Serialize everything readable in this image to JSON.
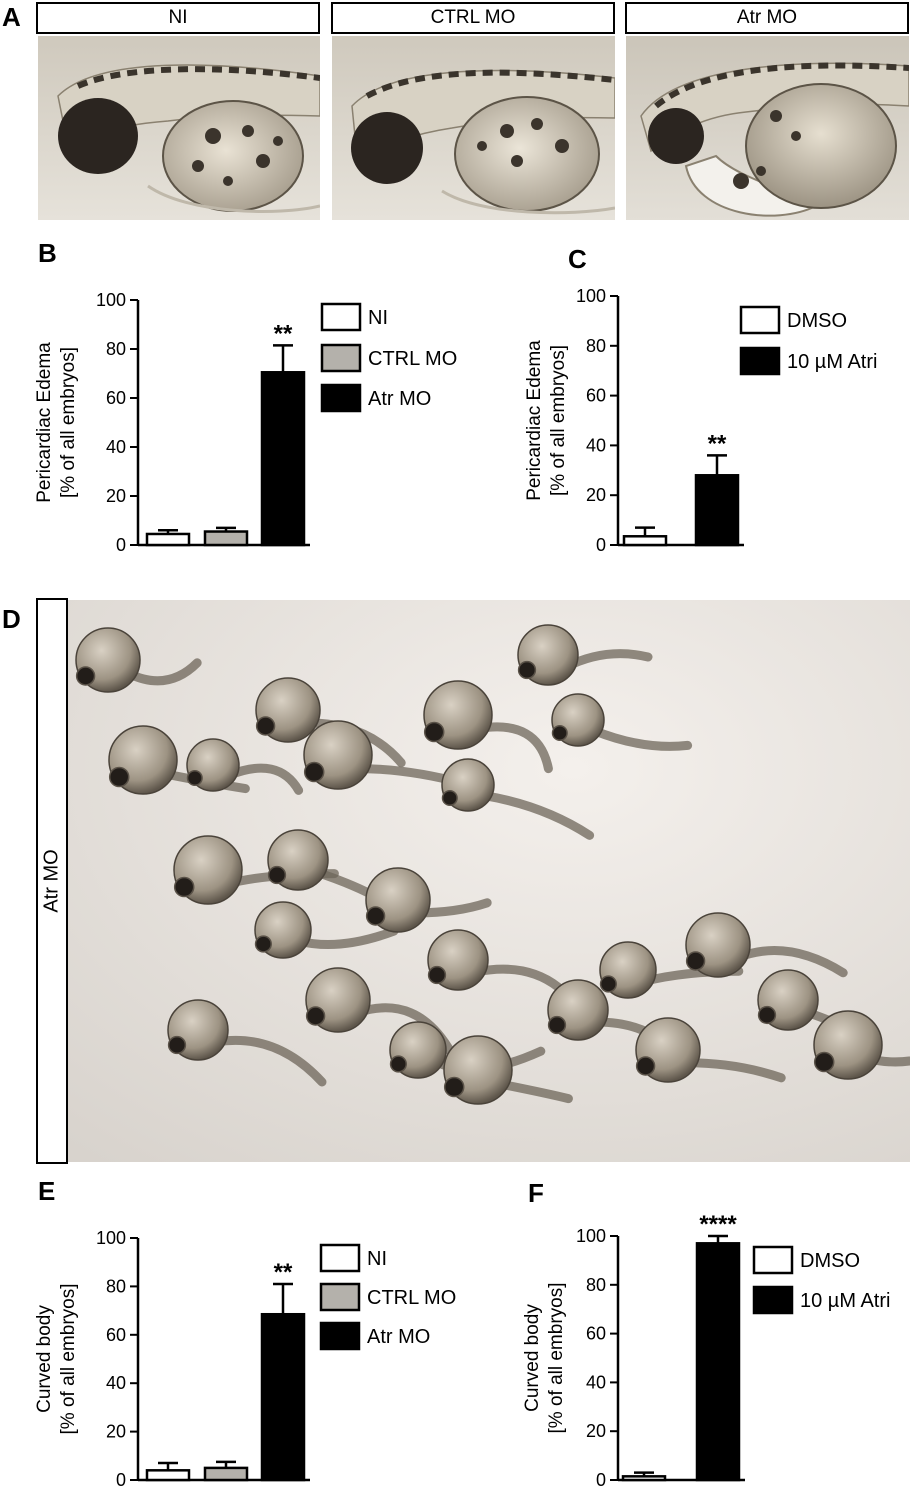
{
  "panels": {
    "a": {
      "letter": "A",
      "labels": [
        "NI",
        "CTRL MO",
        "Atr MO"
      ],
      "icon": "zebrafish-larva-lateral-photo"
    },
    "b": {
      "letter": "B"
    },
    "c": {
      "letter": "C"
    },
    "d": {
      "letter": "D",
      "label": "Atr MO",
      "icon": "zebrafish-embryo-group-photo"
    },
    "e": {
      "letter": "E"
    },
    "f": {
      "letter": "F"
    }
  },
  "colors": {
    "white_bar": "#ffffff",
    "gray_bar": "#b4b1ab",
    "black_bar": "#000000"
  },
  "chart_data": [
    {
      "id": "B",
      "type": "bar",
      "categories": [
        "NI",
        "CTRL MO",
        "Atr MO"
      ],
      "values": [
        4.5,
        5.5,
        70.5
      ],
      "errors": [
        1.5,
        1.5,
        11
      ],
      "significance": [
        "",
        "",
        "**"
      ],
      "fills": [
        "#ffffff",
        "#b4b1ab",
        "#000000"
      ],
      "ylabel": [
        "Pericardiac Edema",
        "[% of all embryos]"
      ],
      "ylim": [
        0,
        100
      ],
      "yticks": [
        "0",
        "20",
        "40",
        "60",
        "80",
        "100"
      ],
      "legend": [
        "NI",
        "CTRL MO",
        "Atr MO"
      ]
    },
    {
      "id": "C",
      "type": "bar",
      "categories": [
        "DMSO",
        "10 µM Atri"
      ],
      "values": [
        3.5,
        28
      ],
      "errors": [
        3.5,
        8
      ],
      "significance": [
        "",
        "**"
      ],
      "fills": [
        "#ffffff",
        "#000000"
      ],
      "ylabel": [
        "Pericardiac Edema",
        "[% of all embryos]"
      ],
      "ylim": [
        0,
        100
      ],
      "yticks": [
        "0",
        "20",
        "40",
        "60",
        "80",
        "100"
      ],
      "legend": [
        "DMSO",
        "10 µM Atri"
      ]
    },
    {
      "id": "E",
      "type": "bar",
      "categories": [
        "NI",
        "CTRL MO",
        "Atr MO"
      ],
      "values": [
        4,
        5,
        68.5
      ],
      "errors": [
        3,
        2.5,
        12.5
      ],
      "significance": [
        "",
        "",
        "**"
      ],
      "fills": [
        "#ffffff",
        "#b4b1ab",
        "#000000"
      ],
      "ylabel": [
        "Curved body",
        "[% of all embryos]"
      ],
      "ylim": [
        0,
        100
      ],
      "yticks": [
        "0",
        "20",
        "40",
        "60",
        "80",
        "100"
      ],
      "legend": [
        "NI",
        "CTRL MO",
        "Atr MO"
      ]
    },
    {
      "id": "F",
      "type": "bar",
      "categories": [
        "DMSO",
        "10 µM Atri"
      ],
      "values": [
        1.5,
        97
      ],
      "errors": [
        1.5,
        3
      ],
      "significance": [
        "",
        "****"
      ],
      "fills": [
        "#ffffff",
        "#000000"
      ],
      "ylabel": [
        "Curved body",
        "[% of all embryos]"
      ],
      "ylim": [
        0,
        100
      ],
      "yticks": [
        "0",
        "20",
        "40",
        "60",
        "80",
        "100"
      ],
      "legend": [
        "DMSO",
        "10 µM Atri"
      ]
    }
  ]
}
